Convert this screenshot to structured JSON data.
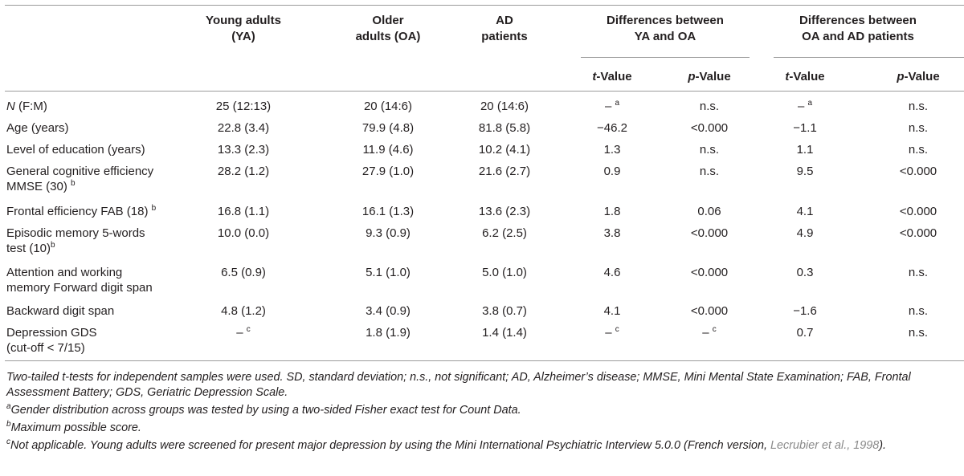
{
  "headers": {
    "ya": [
      "Young adults",
      "(YA)"
    ],
    "oa": [
      "Older",
      "adults (OA)"
    ],
    "ad": [
      "AD",
      "patients"
    ],
    "diff1": [
      "Differences between",
      "YA and OA"
    ],
    "diff2": [
      "Differences between",
      "OA and AD patients"
    ],
    "t_italic": "t",
    "t_rest": "-Value",
    "p_italic": "p",
    "p_rest": "-Value"
  },
  "rows": [
    {
      "label_lines": [
        "F:M)"
      ],
      "label_prefix": "N",
      "label_mid": " (",
      "ya": "25 (12:13)",
      "oa": "20 (14:6)",
      "ad": "20 (14:6)",
      "t1": "– ",
      "t1_sup": "a",
      "p1": "n.s.",
      "p1_sup": "",
      "t2": "– ",
      "t2_sup": "a",
      "p2": "n.s."
    },
    {
      "label_lines": [
        "Age (years)"
      ],
      "ya": "22.8 (3.4)",
      "oa": "79.9 (4.8)",
      "ad": "81.8 (5.8)",
      "t1": "−46.2",
      "p1": "<0.000",
      "t2": "−1.1",
      "p2": "n.s."
    },
    {
      "label_lines": [
        "Level of education (years)"
      ],
      "ya": "13.3 (2.3)",
      "oa": "11.9 (4.6)",
      "ad": "10.2 (4.1)",
      "t1": "1.3",
      "p1": "n.s.",
      "t2": "1.1",
      "p2": "n.s."
    },
    {
      "label_lines": [
        "General cognitive efficiency",
        "MMSE (30) "
      ],
      "label_sup": "b",
      "ya": "28.2 (1.2)",
      "oa": "27.9 (1.0)",
      "ad": "21.6 (2.7)",
      "t1": "0.9",
      "p1": "n.s.",
      "t2": "9.5",
      "p2": "<0.000"
    },
    {
      "label_lines": [
        "Frontal efficiency FAB (18) "
      ],
      "label_sup": "b",
      "ya": "16.8 (1.1)",
      "oa": "16.1 (1.3)",
      "ad": "13.6 (2.3)",
      "t1": "1.8",
      "p1": "0.06",
      "t2": "4.1",
      "p2": "<0.000"
    },
    {
      "label_lines": [
        "Episodic memory 5-words",
        "test (10)"
      ],
      "label_sup": "b",
      "ya": "10.0 (0.0)",
      "oa": "9.3 (0.9)",
      "ad": "6.2 (2.5)",
      "t1": "3.8",
      "p1": "<0.000",
      "t2": "4.9",
      "p2": "<0.000"
    },
    {
      "label_lines": [
        "Attention and working",
        "memory Forward digit span"
      ],
      "ya": "6.5 (0.9)",
      "oa": "5.1 (1.0)",
      "ad": "5.0 (1.0)",
      "t1": "4.6",
      "p1": "<0.000",
      "t2": "0.3",
      "p2": "n.s."
    },
    {
      "label_lines": [
        "Backward digit span"
      ],
      "ya": "4.8 (1.2)",
      "oa": "3.4 (0.9)",
      "ad": "3.8 (0.7)",
      "t1": "4.1",
      "p1": "<0.000",
      "t2": "−1.6",
      "p2": "n.s."
    },
    {
      "label_lines": [
        "Depression GDS",
        "(cut-off < 7/15)"
      ],
      "ya": "– ",
      "ya_sup": "c",
      "oa": "1.8 (1.9)",
      "ad": "1.4 (1.4)",
      "t1": "– ",
      "t1_sup": "c",
      "p1": "– ",
      "p1_sup": "c",
      "t2": "0.7",
      "p2": "n.s."
    }
  ],
  "footnotes": {
    "general": "Two-tailed t-tests for independent samples were used. SD, standard deviation; n.s., not significant; AD, Alzheimer’s disease; MMSE, Mini Mental State Examination; FAB, Frontal Assessment Battery; GDS, Geriatric Depression Scale.",
    "a_mark": "a",
    "a_text": "Gender distribution across groups was tested by using a two-sided Fisher exact test for Count Data.",
    "b_mark": "b",
    "b_text": "Maximum possible score.",
    "c_mark": "c",
    "c_text": "Not applicable. Young adults were screened for present major depression by using the Mini International Psychiatric Interview 5.0.0 (French version, ",
    "c_cite": "Lecrubier et al., 1998",
    "c_end": ")."
  }
}
